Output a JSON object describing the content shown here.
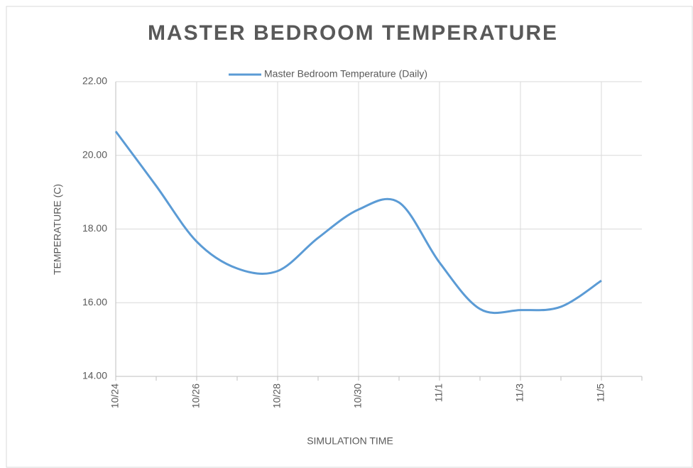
{
  "chart_data": {
    "type": "line",
    "title": "MASTER BEDROOM TEMPERATURE",
    "x_label": "SIMULATION TIME",
    "y_label": "TEMPERATURE (C)",
    "categories": [
      "10/24",
      null,
      "10/26",
      null,
      "10/28",
      null,
      "10/30",
      null,
      "11/1",
      null,
      "11/3",
      null,
      "11/5"
    ],
    "series": [
      {
        "name": "Master Bedroom Temperature (Daily)",
        "color": "#5b9bd5",
        "values": [
          20.65,
          19.17,
          17.66,
          16.93,
          16.86,
          17.76,
          18.53,
          18.72,
          17.09,
          15.83,
          15.8,
          15.89,
          16.6
        ]
      }
    ],
    "ylim": [
      14,
      22
    ],
    "yticks": [
      {
        "value": 14,
        "label": "14.00"
      },
      {
        "value": 16,
        "label": "16.00"
      },
      {
        "value": 18,
        "label": "18.00"
      },
      {
        "value": 20,
        "label": "20.00"
      },
      {
        "value": 22,
        "label": "22.00"
      }
    ],
    "grid": true,
    "smooth": true,
    "legend": "top"
  }
}
